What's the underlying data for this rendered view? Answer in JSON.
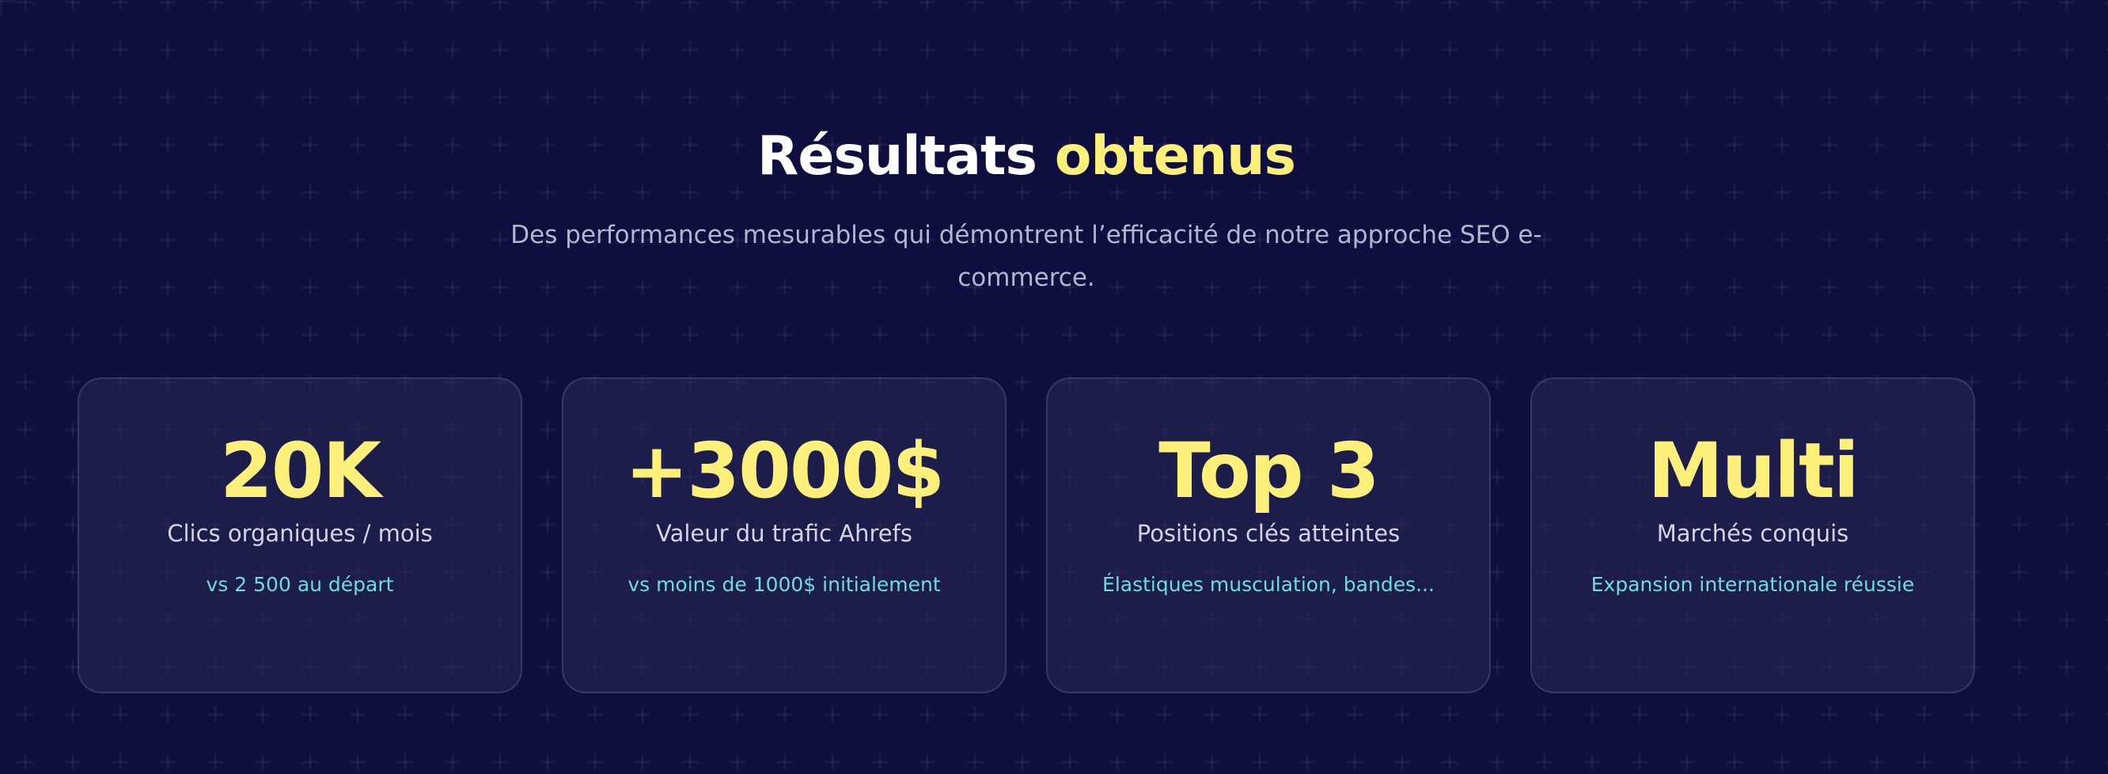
{
  "header": {
    "title_main": "Résultats",
    "title_accent": "obtenus",
    "subtitle": "Des performances mesurables qui démontrent l’efficacité de notre approche SEO e-commerce."
  },
  "colors": {
    "background": "#0e0f3f",
    "accent_yellow": "#fdf07a",
    "accent_cyan": "#6fdcdc",
    "card_background": "#1d1c48"
  },
  "stats": [
    {
      "value": "20K",
      "label": "Clics organiques / mois",
      "note": "vs 2 500 au départ"
    },
    {
      "value": "+3000$",
      "label": "Valeur du trafic Ahrefs",
      "note": "vs moins de 1000$ initialement"
    },
    {
      "value": "Top 3",
      "label": "Positions clés atteintes",
      "note": "Élastiques musculation, bandes..."
    },
    {
      "value": "Multi",
      "label": "Marchés conquis",
      "note": "Expansion internationale réussie"
    }
  ]
}
